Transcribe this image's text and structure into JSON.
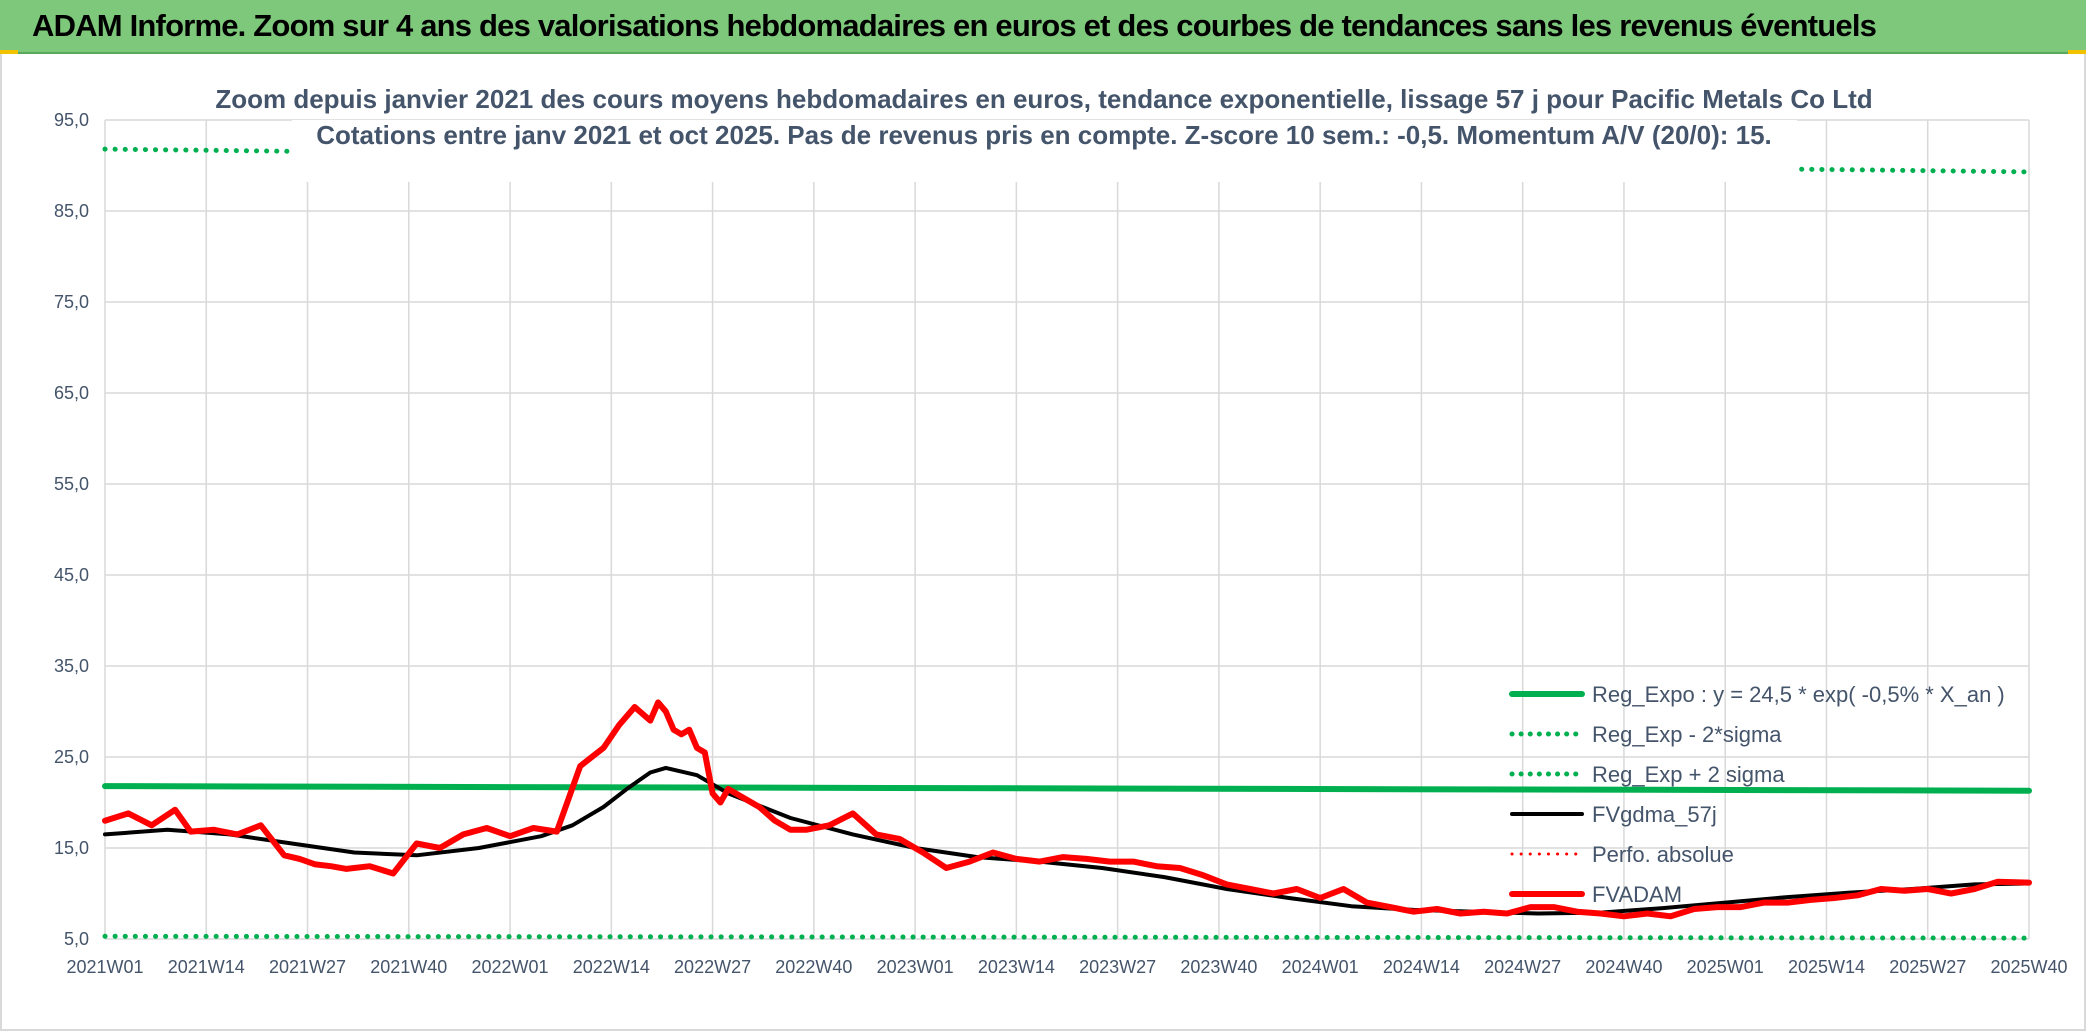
{
  "banner": {
    "title": "ADAM Informe. Zoom sur 4 ans des valorisations hebdomadaires en euros et des courbes de tendances sans les revenus éventuels",
    "bg_color": "#7dc87b"
  },
  "chart_data": {
    "type": "line",
    "title": "Zoom depuis janvier 2021 des cours moyens hebdomadaires en euros, tendance exponentielle, lissage 57 j pour Pacific Metals Co Ltd",
    "subtitle": "Cotations entre janv 2021 et oct 2025. Pas de revenus pris en compte. Z-score 10 sem.: -0,5. Momentum A/V (20/0): 15.",
    "xlabel": "",
    "ylabel": "",
    "ylim": [
      5,
      95
    ],
    "yticks": [
      "5,0",
      "15,0",
      "25,0",
      "35,0",
      "45,0",
      "55,0",
      "65,0",
      "75,0",
      "85,0",
      "95,0"
    ],
    "ytick_values": [
      5,
      15,
      25,
      35,
      45,
      55,
      65,
      75,
      85,
      95
    ],
    "xticks": [
      "2021W01",
      "2021W14",
      "2021W27",
      "2021W40",
      "2022W01",
      "2022W14",
      "2022W27",
      "2022W40",
      "2023W01",
      "2023W14",
      "2023W27",
      "2023W40",
      "2024W01",
      "2024W14",
      "2024W27",
      "2024W40",
      "2025W01",
      "2025W14",
      "2025W27",
      "2025W40"
    ],
    "x_count": 248,
    "grid": true,
    "legend_position": "bottom-right",
    "series": [
      {
        "name": "Reg_Expo : y = 24,5 * exp( -0,5% *  X_an )",
        "color": "#00b050",
        "style": "solid",
        "width": 6,
        "x": [
          0,
          247
        ],
        "values": [
          21.8,
          21.3
        ]
      },
      {
        "name": "Reg_Exp - 2*sigma",
        "color": "#00b050",
        "style": "dotted",
        "width": 5,
        "x": [
          0,
          247
        ],
        "values": [
          5.3,
          5.1
        ]
      },
      {
        "name": "Reg_Exp + 2 sigma",
        "color": "#00b050",
        "style": "dotted",
        "width": 5,
        "x": [
          0,
          247
        ],
        "values": [
          91.8,
          89.3
        ]
      },
      {
        "name": "FVgdma_57j",
        "color": "#000000",
        "style": "solid",
        "width": 4,
        "x": [
          0,
          8,
          16,
          24,
          32,
          40,
          48,
          56,
          60,
          64,
          67,
          70,
          72,
          76,
          80,
          88,
          96,
          104,
          112,
          120,
          128,
          136,
          144,
          152,
          160,
          168,
          176,
          184,
          192,
          200,
          208,
          216,
          224,
          232,
          240,
          247
        ],
        "values": [
          16.5,
          17.0,
          16.5,
          15.5,
          14.5,
          14.2,
          15.0,
          16.3,
          17.5,
          19.5,
          21.5,
          23.3,
          23.8,
          23.0,
          21.0,
          18.3,
          16.5,
          15.0,
          14.0,
          13.5,
          12.8,
          11.8,
          10.5,
          9.5,
          8.6,
          8.2,
          8.0,
          7.8,
          7.9,
          8.4,
          9.0,
          9.6,
          10.1,
          10.5,
          11.0,
          11.1
        ]
      },
      {
        "name": "Perfo. absolue",
        "color": "#ff0000",
        "style": "dotted",
        "width": 3,
        "x": [],
        "values": []
      },
      {
        "name": "FVADAM",
        "color": "#ff0000",
        "style": "solid",
        "width": 6,
        "x": [
          0,
          3,
          6,
          9,
          11,
          14,
          17,
          20,
          23,
          25,
          27,
          29,
          31,
          34,
          37,
          40,
          43,
          46,
          49,
          52,
          55,
          58,
          61,
          64,
          66,
          68,
          70,
          71,
          72,
          73,
          74,
          75,
          76,
          77,
          78,
          79,
          80,
          82,
          84,
          86,
          88,
          90,
          93,
          96,
          99,
          102,
          105,
          108,
          111,
          114,
          117,
          120,
          123,
          126,
          129,
          132,
          135,
          138,
          141,
          144,
          147,
          150,
          153,
          156,
          159,
          162,
          165,
          168,
          171,
          174,
          177,
          180,
          183,
          186,
          189,
          192,
          195,
          198,
          201,
          204,
          207,
          210,
          213,
          216,
          219,
          222,
          225,
          228,
          231,
          234,
          237,
          240,
          243,
          247
        ],
        "values": [
          18.0,
          18.8,
          17.5,
          19.2,
          16.8,
          17.0,
          16.5,
          17.5,
          14.2,
          13.8,
          13.2,
          13.0,
          12.7,
          13.0,
          12.2,
          15.5,
          15.0,
          16.5,
          17.2,
          16.3,
          17.2,
          16.8,
          24.0,
          26.0,
          28.5,
          30.5,
          29.0,
          31.0,
          30.0,
          28.0,
          27.5,
          28.0,
          26.0,
          25.5,
          21.0,
          20.0,
          21.5,
          20.5,
          19.5,
          18.0,
          17.0,
          17.0,
          17.5,
          18.8,
          16.5,
          16.0,
          14.5,
          12.8,
          13.5,
          14.5,
          13.8,
          13.5,
          14.0,
          13.8,
          13.5,
          13.5,
          13.0,
          12.8,
          12.0,
          11.0,
          10.5,
          10.0,
          10.5,
          9.5,
          10.5,
          9.0,
          8.5,
          8.0,
          8.3,
          7.8,
          8.0,
          7.8,
          8.5,
          8.5,
          8.0,
          7.8,
          7.5,
          7.8,
          7.5,
          8.3,
          8.5,
          8.5,
          9.0,
          9.0,
          9.3,
          9.5,
          9.8,
          10.5,
          10.3,
          10.5,
          10.0,
          10.5,
          11.3,
          11.2
        ]
      }
    ]
  }
}
